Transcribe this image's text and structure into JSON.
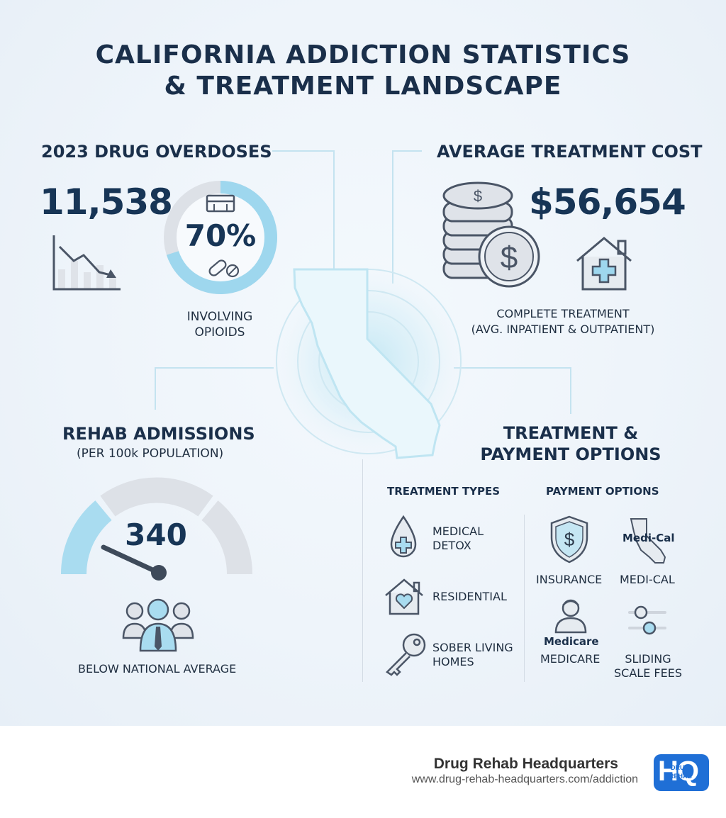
{
  "title_line1": "CALIFORNIA ADDICTION STATISTICS",
  "title_line2": "& TREATMENT LANDSCAPE",
  "overdoses": {
    "heading": "2023 DRUG OVERDOSES",
    "count": "11,538",
    "percent": "70%",
    "percent_value": 0.7,
    "caption_line1": "INVOLVING",
    "caption_line2": "OPIOIDS"
  },
  "cost": {
    "heading": "AVERAGE TREATMENT COST",
    "amount": "$56,654",
    "caption_line1": "COMPLETE TREATMENT",
    "caption_line2": "(AVG. INPATIENT & OUTPATIENT)"
  },
  "admissions": {
    "heading": "REHAB ADMISSIONS",
    "subheading": "(PER 100k POPULATION)",
    "value": "340",
    "caption": "BELOW NATIONAL AVERAGE"
  },
  "options": {
    "heading_line1": "TREATMENT &",
    "heading_line2": "PAYMENT OPTIONS",
    "types_heading": "TREATMENT TYPES",
    "payment_heading": "PAYMENT OPTIONS",
    "types": [
      {
        "line1": "MEDICAL",
        "line2": "DETOX",
        "icon": "droplet-cross-icon"
      },
      {
        "line1": "RESIDENTIAL",
        "line2": "",
        "icon": "house-heart-icon"
      },
      {
        "line1": "SOBER LIVING",
        "line2": "HOMES",
        "icon": "key-icon"
      }
    ],
    "payments": [
      {
        "line1": "INSURANCE",
        "line2": "",
        "icon": "shield-dollar-icon"
      },
      {
        "line1": "MEDI-CAL",
        "line2": "",
        "icon_text": "Medi-Cal",
        "icon": "california-outline-icon"
      },
      {
        "line1": "MEDICARE",
        "line2": "",
        "icon_text": "Medicare",
        "icon": "person-icon"
      },
      {
        "line1": "SLIDING",
        "line2": "SCALE FEES",
        "icon": "slider-icon"
      }
    ]
  },
  "footer": {
    "brand": "Drug Rehab Headquarters",
    "url": "www.drug-rehab-headquarters.com/addiction",
    "logo_big": "HQ",
    "logo_small_1": "DRUG",
    "logo_small_2": "REHAB"
  },
  "colors": {
    "navy": "#173556",
    "accent": "#8fd0ea",
    "grey": "#d9dde3",
    "background": "#eef4fa"
  }
}
